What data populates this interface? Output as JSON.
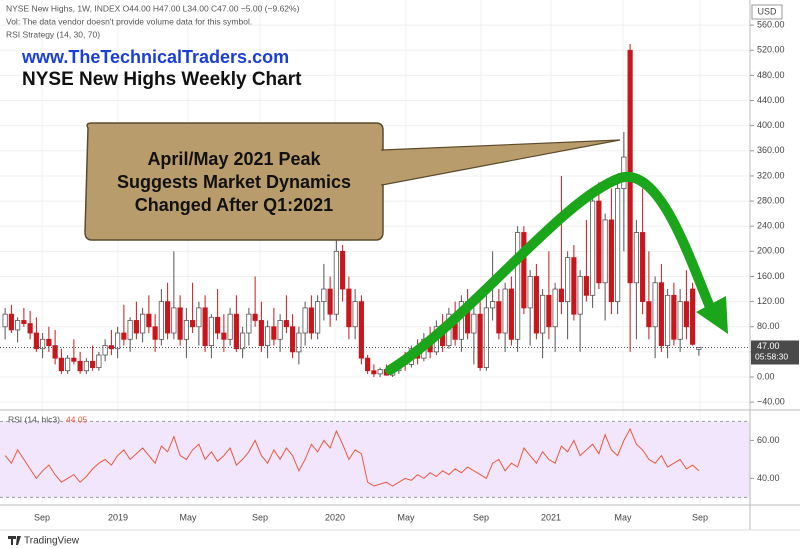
{
  "chart_data": {
    "type": "candlestick",
    "header": {
      "symbol_line": "NYSE New Highs, 1W, INDEX  O44.00  H47.00  L34.00  C47.00  −5.00 (−9.62%)",
      "vol_line": "Vol: The data vendor doesn't provide volume data for this symbol.",
      "strategy_line": "RSI Strategy (14, 30, 70)"
    },
    "website": "www.TheTechnicalTraders.com",
    "title": "NYSE New Highs Weekly Chart",
    "callout": [
      "April/May 2021 Peak",
      "Suggests Market Dynamics",
      "Changed After Q1:2021"
    ],
    "currency": "USD",
    "x_labels": [
      "Sep",
      "2019",
      "May",
      "Sep",
      "2020",
      "May",
      "Sep",
      "2021",
      "May",
      "Sep"
    ],
    "ohlc": [
      [
        80,
        110,
        60,
        100
      ],
      [
        100,
        115,
        70,
        75
      ],
      [
        75,
        95,
        55,
        90
      ],
      [
        90,
        110,
        80,
        85
      ],
      [
        85,
        105,
        60,
        70
      ],
      [
        70,
        95,
        40,
        45
      ],
      [
        45,
        70,
        30,
        60
      ],
      [
        60,
        80,
        40,
        50
      ],
      [
        50,
        75,
        20,
        30
      ],
      [
        30,
        45,
        5,
        10
      ],
      [
        10,
        35,
        5,
        30
      ],
      [
        30,
        60,
        20,
        25
      ],
      [
        25,
        40,
        5,
        10
      ],
      [
        10,
        30,
        5,
        25
      ],
      [
        25,
        50,
        10,
        15
      ],
      [
        15,
        40,
        10,
        35
      ],
      [
        35,
        60,
        25,
        50
      ],
      [
        50,
        75,
        35,
        45
      ],
      [
        45,
        80,
        30,
        70
      ],
      [
        70,
        115,
        50,
        60
      ],
      [
        60,
        95,
        40,
        90
      ],
      [
        90,
        120,
        60,
        70
      ],
      [
        70,
        110,
        55,
        100
      ],
      [
        100,
        130,
        70,
        80
      ],
      [
        80,
        100,
        40,
        60
      ],
      [
        60,
        140,
        50,
        120
      ],
      [
        120,
        150,
        60,
        70
      ],
      [
        70,
        200,
        60,
        110
      ],
      [
        110,
        130,
        50,
        60
      ],
      [
        60,
        110,
        30,
        90
      ],
      [
        90,
        150,
        70,
        80
      ],
      [
        80,
        120,
        50,
        110
      ],
      [
        110,
        130,
        40,
        50
      ],
      [
        50,
        100,
        30,
        95
      ],
      [
        95,
        140,
        60,
        70
      ],
      [
        70,
        100,
        40,
        60
      ],
      [
        60,
        110,
        50,
        100
      ],
      [
        100,
        130,
        40,
        45
      ],
      [
        45,
        80,
        30,
        70
      ],
      [
        70,
        110,
        50,
        100
      ],
      [
        100,
        160,
        80,
        90
      ],
      [
        90,
        120,
        40,
        50
      ],
      [
        50,
        90,
        30,
        80
      ],
      [
        80,
        110,
        50,
        60
      ],
      [
        60,
        100,
        40,
        90
      ],
      [
        90,
        130,
        70,
        80
      ],
      [
        80,
        100,
        30,
        40
      ],
      [
        40,
        80,
        20,
        70
      ],
      [
        70,
        120,
        50,
        110
      ],
      [
        110,
        130,
        60,
        70
      ],
      [
        70,
        130,
        60,
        120
      ],
      [
        120,
        180,
        90,
        140
      ],
      [
        140,
        160,
        80,
        100
      ],
      [
        100,
        240,
        90,
        200
      ],
      [
        200,
        210,
        120,
        140
      ],
      [
        140,
        160,
        60,
        80
      ],
      [
        80,
        140,
        60,
        120
      ],
      [
        120,
        130,
        20,
        30
      ],
      [
        30,
        35,
        5,
        10
      ],
      [
        10,
        20,
        0,
        5
      ],
      [
        5,
        15,
        0,
        12
      ],
      [
        12,
        20,
        2,
        3
      ],
      [
        3,
        15,
        0,
        10
      ],
      [
        10,
        30,
        5,
        25
      ],
      [
        25,
        40,
        10,
        20
      ],
      [
        20,
        50,
        15,
        45
      ],
      [
        45,
        60,
        20,
        30
      ],
      [
        30,
        70,
        25,
        60
      ],
      [
        60,
        80,
        30,
        40
      ],
      [
        40,
        90,
        35,
        80
      ],
      [
        80,
        100,
        40,
        50
      ],
      [
        50,
        110,
        45,
        100
      ],
      [
        100,
        120,
        50,
        60
      ],
      [
        60,
        130,
        40,
        120
      ],
      [
        120,
        140,
        60,
        70
      ],
      [
        70,
        110,
        20,
        100
      ],
      [
        100,
        120,
        10,
        15
      ],
      [
        15,
        130,
        10,
        110
      ],
      [
        110,
        200,
        90,
        120
      ],
      [
        120,
        140,
        60,
        70
      ],
      [
        70,
        150,
        40,
        140
      ],
      [
        140,
        160,
        50,
        60
      ],
      [
        60,
        240,
        40,
        230
      ],
      [
        230,
        240,
        100,
        110
      ],
      [
        110,
        170,
        50,
        160
      ],
      [
        160,
        180,
        60,
        70
      ],
      [
        70,
        140,
        30,
        130
      ],
      [
        130,
        200,
        60,
        80
      ],
      [
        80,
        150,
        40,
        140
      ],
      [
        140,
        320,
        100,
        120
      ],
      [
        120,
        200,
        60,
        190
      ],
      [
        190,
        210,
        90,
        100
      ],
      [
        100,
        170,
        40,
        160
      ],
      [
        160,
        250,
        120,
        130
      ],
      [
        130,
        300,
        110,
        280
      ],
      [
        280,
        310,
        140,
        150
      ],
      [
        150,
        260,
        90,
        250
      ],
      [
        250,
        300,
        100,
        120
      ],
      [
        120,
        310,
        100,
        300
      ],
      [
        300,
        390,
        200,
        350
      ],
      [
        520,
        530,
        40,
        150
      ],
      [
        150,
        250,
        60,
        230
      ],
      [
        230,
        300,
        100,
        120
      ],
      [
        120,
        200,
        60,
        80
      ],
      [
        80,
        160,
        30,
        150
      ],
      [
        150,
        180,
        40,
        50
      ],
      [
        50,
        140,
        30,
        130
      ],
      [
        130,
        150,
        50,
        60
      ],
      [
        60,
        140,
        40,
        120
      ],
      [
        120,
        170,
        60,
        80
      ],
      [
        140,
        150,
        50,
        52
      ],
      [
        44,
        47,
        34,
        47
      ]
    ],
    "up_color": "#ffffff",
    "down_color": "#c8161d",
    "ylim": [
      -52.5,
      600
    ],
    "yticks": [
      {
        "value": -40,
        "label": "−40.00"
      },
      {
        "value": 0,
        "label": "0.00"
      },
      {
        "value": 40,
        "label": "40.00"
      },
      {
        "value": 80,
        "label": "80.00"
      },
      {
        "value": 120,
        "label": "120.00"
      },
      {
        "value": 160,
        "label": "160.00"
      },
      {
        "value": 200,
        "label": "200.00"
      },
      {
        "value": 240,
        "label": "240.00"
      },
      {
        "value": 280,
        "label": "280.00"
      },
      {
        "value": 320,
        "label": "320.00"
      },
      {
        "value": 360,
        "label": "360.00"
      },
      {
        "value": 400,
        "label": "400.00"
      },
      {
        "value": 440,
        "label": "440.00"
      },
      {
        "value": 480,
        "label": "480.00"
      },
      {
        "value": 520,
        "label": "520.00"
      },
      {
        "value": 560,
        "label": "560.00"
      }
    ],
    "grid": true,
    "last_price": {
      "value": 47,
      "label": "47.00"
    },
    "countdown": "05:58:30",
    "rsi": {
      "label": "RSI (14, hlc3)",
      "value": 44.05,
      "color": "#e8593c",
      "band": [
        30,
        70
      ],
      "ylim": [
        26,
        76
      ],
      "yticks": [
        {
          "value": 40,
          "label": "40.00"
        },
        {
          "value": 60,
          "label": "60.00"
        }
      ],
      "values": [
        52,
        48,
        55,
        50,
        45,
        40,
        44,
        47,
        42,
        38,
        40,
        42,
        38,
        41,
        45,
        48,
        50,
        47,
        52,
        55,
        50,
        53,
        56,
        52,
        48,
        57,
        54,
        62,
        52,
        50,
        55,
        58,
        50,
        54,
        49,
        52,
        56,
        47,
        50,
        54,
        60,
        52,
        48,
        55,
        50,
        56,
        52,
        44,
        50,
        58,
        54,
        60,
        56,
        65,
        58,
        50,
        55,
        53,
        38,
        36,
        37,
        38,
        36,
        38,
        40,
        39,
        42,
        40,
        43,
        41,
        44,
        42,
        45,
        43,
        46,
        44,
        42,
        40,
        48,
        50,
        44,
        48,
        46,
        56,
        52,
        48,
        54,
        50,
        48,
        57,
        54,
        60,
        52,
        55,
        58,
        53,
        63,
        55,
        52,
        60,
        66,
        58,
        55,
        50,
        48,
        52,
        46,
        48,
        50,
        45,
        47,
        44.05
      ]
    },
    "footer": "TradingView"
  }
}
